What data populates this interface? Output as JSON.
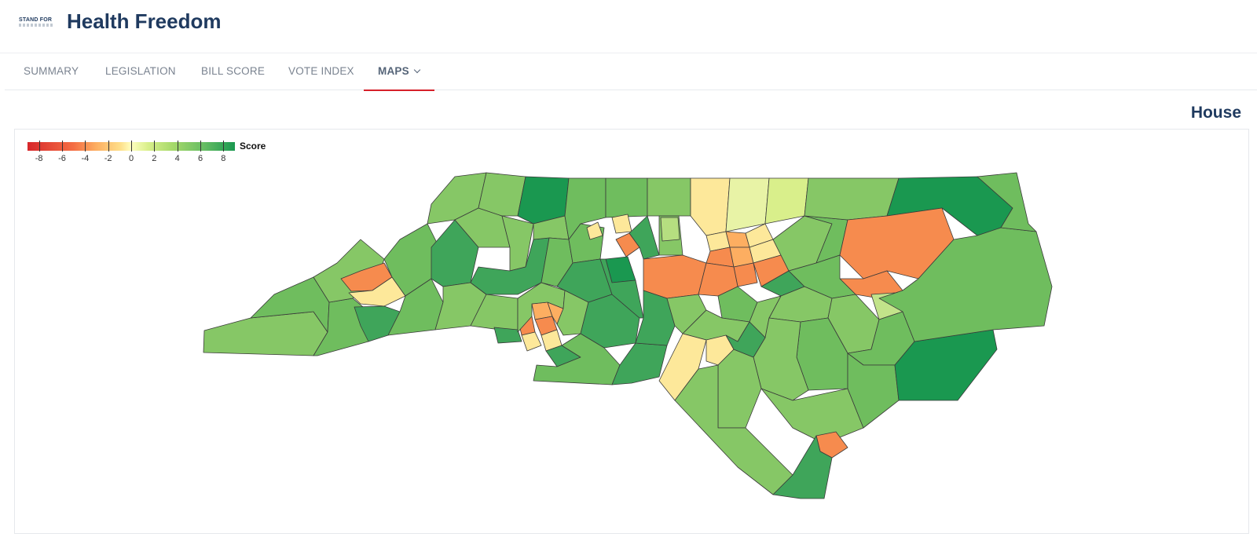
{
  "header": {
    "logo_text": "STAND FOR",
    "title": "Health Freedom"
  },
  "nav": {
    "items": [
      {
        "label": "SUMMARY",
        "active": false
      },
      {
        "label": "LEGISLATION",
        "active": false
      },
      {
        "label": "BILL SCORE",
        "active": false
      },
      {
        "label": "VOTE INDEX",
        "active": false
      },
      {
        "label": "MAPS",
        "active": true,
        "has_dropdown": true
      }
    ]
  },
  "chamber_title": "House",
  "legend": {
    "title": "Score",
    "ticks": [
      "-8",
      "-6",
      "-4",
      "-2",
      "0",
      "2",
      "4",
      "6",
      "8"
    ],
    "min": -9,
    "max": 9,
    "color_scale": [
      "#d7272b",
      "#f46d43",
      "#fdae61",
      "#fee08b",
      "#ffffbf",
      "#d9ef8b",
      "#a6d96a",
      "#66bd63",
      "#1a9850"
    ]
  },
  "colors": {
    "title_navy": "#1f3a5f",
    "nav_active_underline": "#d6202a"
  }
}
